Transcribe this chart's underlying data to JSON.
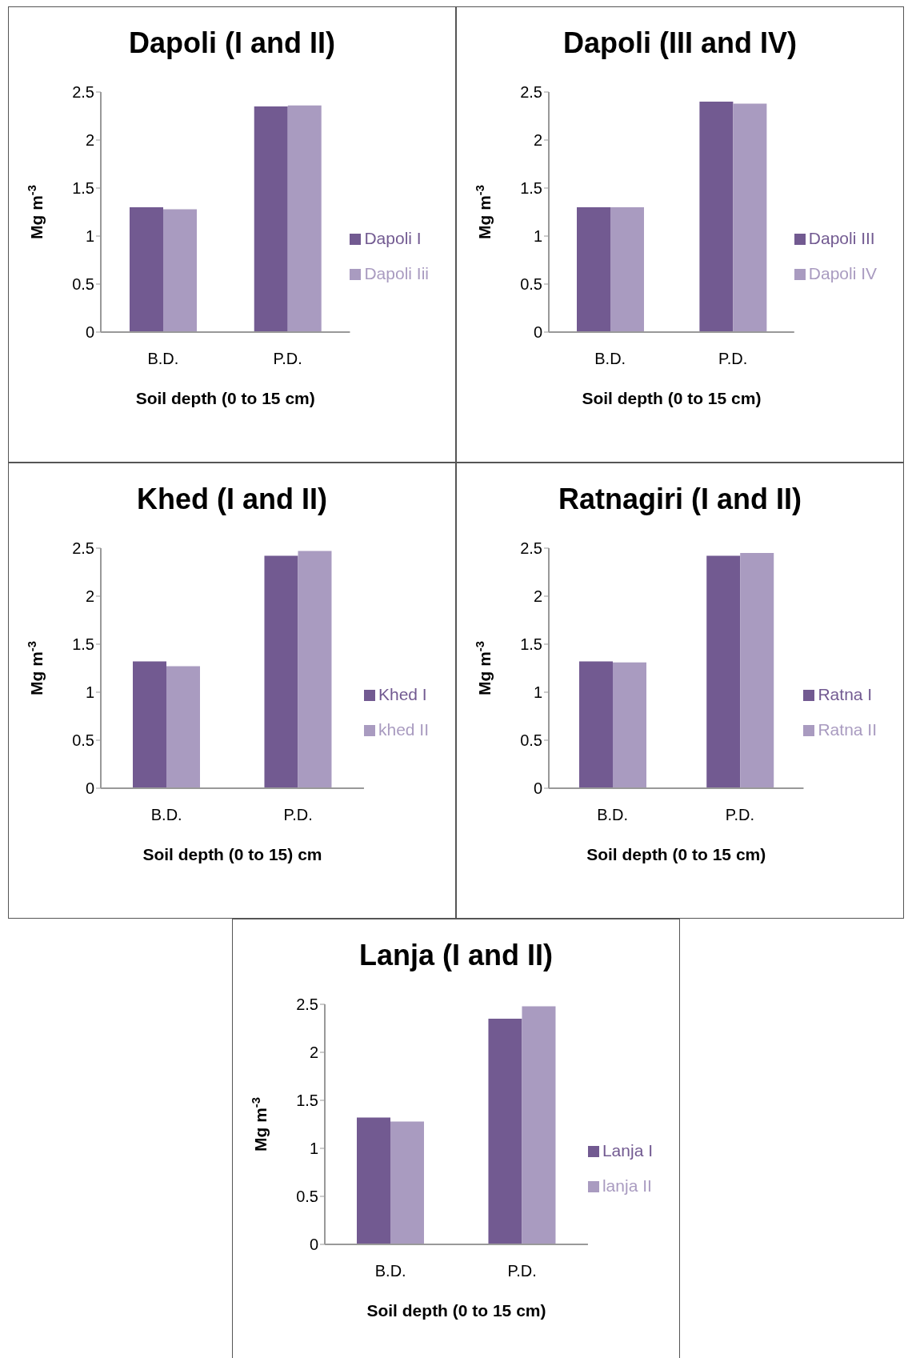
{
  "chart_data": [
    {
      "type": "bar",
      "title": "Dapoli (I and II)",
      "xlabel": "Soil depth  (0 to 15 cm)",
      "ylabel": "Mg m$^{-3}$",
      "categories": [
        "B.D.",
        "P.D."
      ],
      "series": [
        {
          "name": "Dapoli I",
          "color": "#725a91",
          "values": [
            1.3,
            2.35
          ]
        },
        {
          "name": "Dapoli Iii",
          "color": "#a99bc0",
          "values": [
            1.28,
            2.36
          ]
        }
      ],
      "ylim": [
        0,
        2.5
      ],
      "yticks": [
        0,
        0.5,
        1,
        1.5,
        2,
        2.5
      ],
      "grid": false,
      "legend": "right"
    },
    {
      "type": "bar",
      "title": "Dapoli (III and IV)",
      "xlabel": "Soil depth (0 to 15 cm)",
      "ylabel": "Mg m$^{-3}$",
      "categories": [
        "B.D.",
        "P.D."
      ],
      "series": [
        {
          "name": "Dapoli III",
          "color": "#725a91",
          "values": [
            1.3,
            2.4
          ]
        },
        {
          "name": "Dapoli IV",
          "color": "#a99bc0",
          "values": [
            1.3,
            2.38
          ]
        }
      ],
      "ylim": [
        0,
        2.5
      ],
      "yticks": [
        0,
        0.5,
        1,
        1.5,
        2,
        2.5
      ],
      "grid": false,
      "legend": "right"
    },
    {
      "type": "bar",
      "title": "Khed (I and II)",
      "xlabel": "Soil depth (0 to 15) cm",
      "ylabel": "Mg m$^{-3}$",
      "categories": [
        "B.D.",
        "P.D."
      ],
      "series": [
        {
          "name": "Khed I",
          "color": "#725a91",
          "values": [
            1.32,
            2.42
          ]
        },
        {
          "name": "khed II",
          "color": "#a99bc0",
          "values": [
            1.27,
            2.47
          ]
        }
      ],
      "ylim": [
        0,
        2.5
      ],
      "yticks": [
        0,
        0.5,
        1,
        1.5,
        2,
        2.5
      ],
      "grid": false,
      "legend": "right"
    },
    {
      "type": "bar",
      "title": "Ratnagiri (I and II)",
      "xlabel": "Soil depth  (0 to 15 cm)",
      "ylabel": "Mg m$^{-3}$",
      "categories": [
        "B.D.",
        "P.D."
      ],
      "series": [
        {
          "name": "Ratna I",
          "color": "#725a91",
          "values": [
            1.32,
            2.42
          ]
        },
        {
          "name": "Ratna II",
          "color": "#a99bc0",
          "values": [
            1.31,
            2.45
          ]
        }
      ],
      "ylim": [
        0,
        2.5
      ],
      "yticks": [
        0,
        0.5,
        1,
        1.5,
        2,
        2.5
      ],
      "grid": false,
      "legend": "right"
    },
    {
      "type": "bar",
      "title": "Lanja (I and II)",
      "xlabel": "Soil depth (0 to 15 cm)",
      "ylabel": "Mg m$^{-3}$",
      "categories": [
        "B.D.",
        "P.D."
      ],
      "series": [
        {
          "name": "Lanja I",
          "color": "#725a91",
          "values": [
            1.32,
            2.35
          ]
        },
        {
          "name": "lanja II",
          "color": "#a99bc0",
          "values": [
            1.28,
            2.48
          ]
        }
      ],
      "ylim": [
        0,
        2.5
      ],
      "yticks": [
        0,
        0.5,
        1,
        1.5,
        2,
        2.5
      ],
      "grid": false,
      "legend": "right"
    }
  ]
}
